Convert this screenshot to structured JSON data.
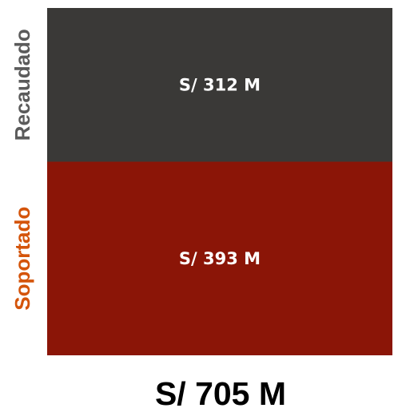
{
  "chart_data": {
    "type": "bar",
    "stacked": true,
    "orientation": "vertical",
    "unit": "S/ M",
    "series": [
      {
        "name": "Recaudado",
        "value": 312,
        "label": "S/ 312 M",
        "color": "#3a3937",
        "label_color": "#5b5b5b"
      },
      {
        "name": "Soportado",
        "value": 393,
        "label": "S/ 393 M",
        "color": "#8b1507",
        "label_color": "#d4540a"
      }
    ],
    "total": 705,
    "total_label": "S/ 705 M",
    "grid": false,
    "legend": "none"
  }
}
